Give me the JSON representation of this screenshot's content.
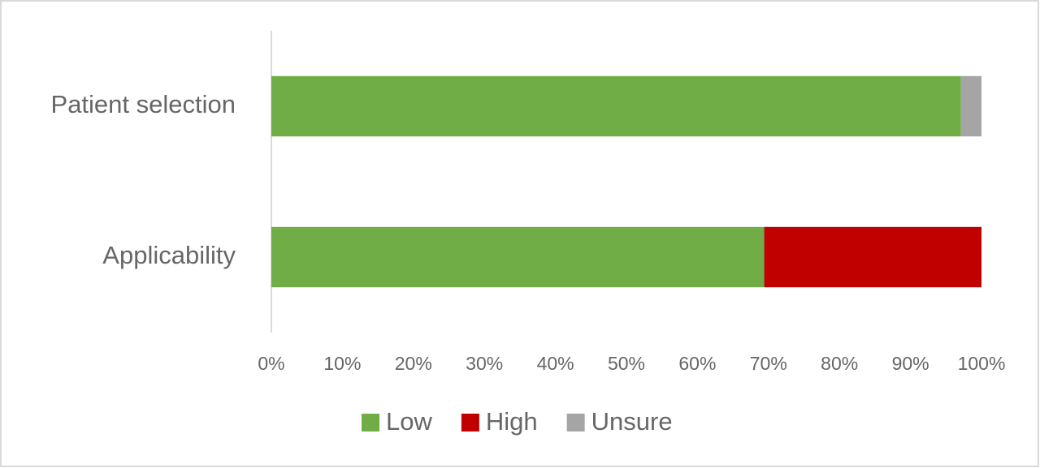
{
  "chart_data": {
    "type": "stacked-bar-horizontal",
    "categories": [
      "Patient selection",
      "Applicability"
    ],
    "series": [
      {
        "name": "Low",
        "color": "#70ad47",
        "values": [
          97.1,
          69.4
        ]
      },
      {
        "name": "High",
        "color": "#c00000",
        "values": [
          0,
          30.6
        ]
      },
      {
        "name": "Unsure",
        "color": "#a5a5a5",
        "values": [
          2.9,
          0
        ]
      }
    ],
    "xlim": [
      0,
      100
    ],
    "xticks": [
      {
        "value": 0,
        "label": "0%"
      },
      {
        "value": 10,
        "label": "10%"
      },
      {
        "value": 20,
        "label": "20%"
      },
      {
        "value": 30,
        "label": "30%"
      },
      {
        "value": 40,
        "label": "40%"
      },
      {
        "value": 50,
        "label": "50%"
      },
      {
        "value": 60,
        "label": "60%"
      },
      {
        "value": 70,
        "label": "70%"
      },
      {
        "value": 80,
        "label": "80%"
      },
      {
        "value": 90,
        "label": "90%"
      },
      {
        "value": 100,
        "label": "100%"
      }
    ],
    "grid": false,
    "legend": "bottom"
  }
}
